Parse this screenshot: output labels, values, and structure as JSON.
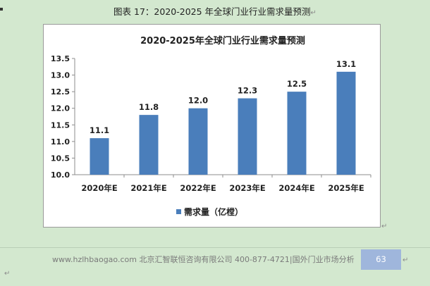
{
  "caption": "图表 17：2020-2025 年全球门业行业需求量预测",
  "paragraph_mark": "↵",
  "chart_data": {
    "type": "bar",
    "title": "2020-2025年全球门业行业需求量预测",
    "categories": [
      "2020年E",
      "2021年E",
      "2022年E",
      "2023年E",
      "2024年E",
      "2025年E"
    ],
    "series": [
      {
        "name": "需求量（亿樘）",
        "values": [
          11.1,
          11.8,
          12.0,
          12.3,
          12.5,
          13.1
        ]
      }
    ],
    "data_labels": [
      "11.1",
      "11.8",
      "12.0",
      "12.3",
      "12.5",
      "13.1"
    ],
    "ylim": [
      10.0,
      13.5
    ],
    "y_ticks": [
      "10.0",
      "10.5",
      "11.0",
      "11.5",
      "12.0",
      "12.5",
      "13.0",
      "13.5"
    ],
    "xlabel": "",
    "ylabel": "",
    "grid": false,
    "legend_position": "bottom",
    "bar_color": "#4a7ebb"
  },
  "footer": {
    "text": "www.hzlhbaogao.com 北京汇智联恒咨询有限公司 400-877-4721|国外门业市场分析",
    "page_number": "63"
  }
}
